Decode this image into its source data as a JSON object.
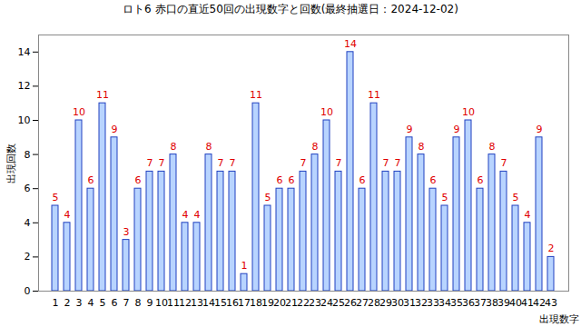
{
  "chart_data": {
    "type": "bar",
    "title": "ロト6 赤口の直近50回の出現数字と回数(最終抽選日：2024-12-02)",
    "x_label": "出現数字",
    "y_label": "出現回数",
    "categories": [
      "1",
      "2",
      "3",
      "4",
      "5",
      "6",
      "7",
      "8",
      "9",
      "10",
      "11",
      "12",
      "13",
      "14",
      "15",
      "16",
      "17",
      "18",
      "19",
      "20",
      "21",
      "22",
      "23",
      "24",
      "25",
      "26",
      "27",
      "28",
      "29",
      "30",
      "31",
      "32",
      "33",
      "34",
      "35",
      "36",
      "37",
      "38",
      "39",
      "40",
      "41",
      "42",
      "43"
    ],
    "values": [
      5,
      4,
      10,
      6,
      11,
      9,
      3,
      6,
      7,
      7,
      8,
      4,
      4,
      8,
      7,
      7,
      1,
      11,
      5,
      6,
      6,
      7,
      8,
      10,
      7,
      14,
      6,
      11,
      7,
      7,
      9,
      8,
      6,
      5,
      9,
      10,
      6,
      8,
      7,
      5,
      4,
      9,
      2
    ],
    "color": "#b8d4ff",
    "ylim": [
      0,
      15
    ],
    "yticks": [
      0,
      2,
      4,
      6,
      8,
      10,
      12,
      14
    ],
    "grid": false,
    "data_labels": true
  }
}
